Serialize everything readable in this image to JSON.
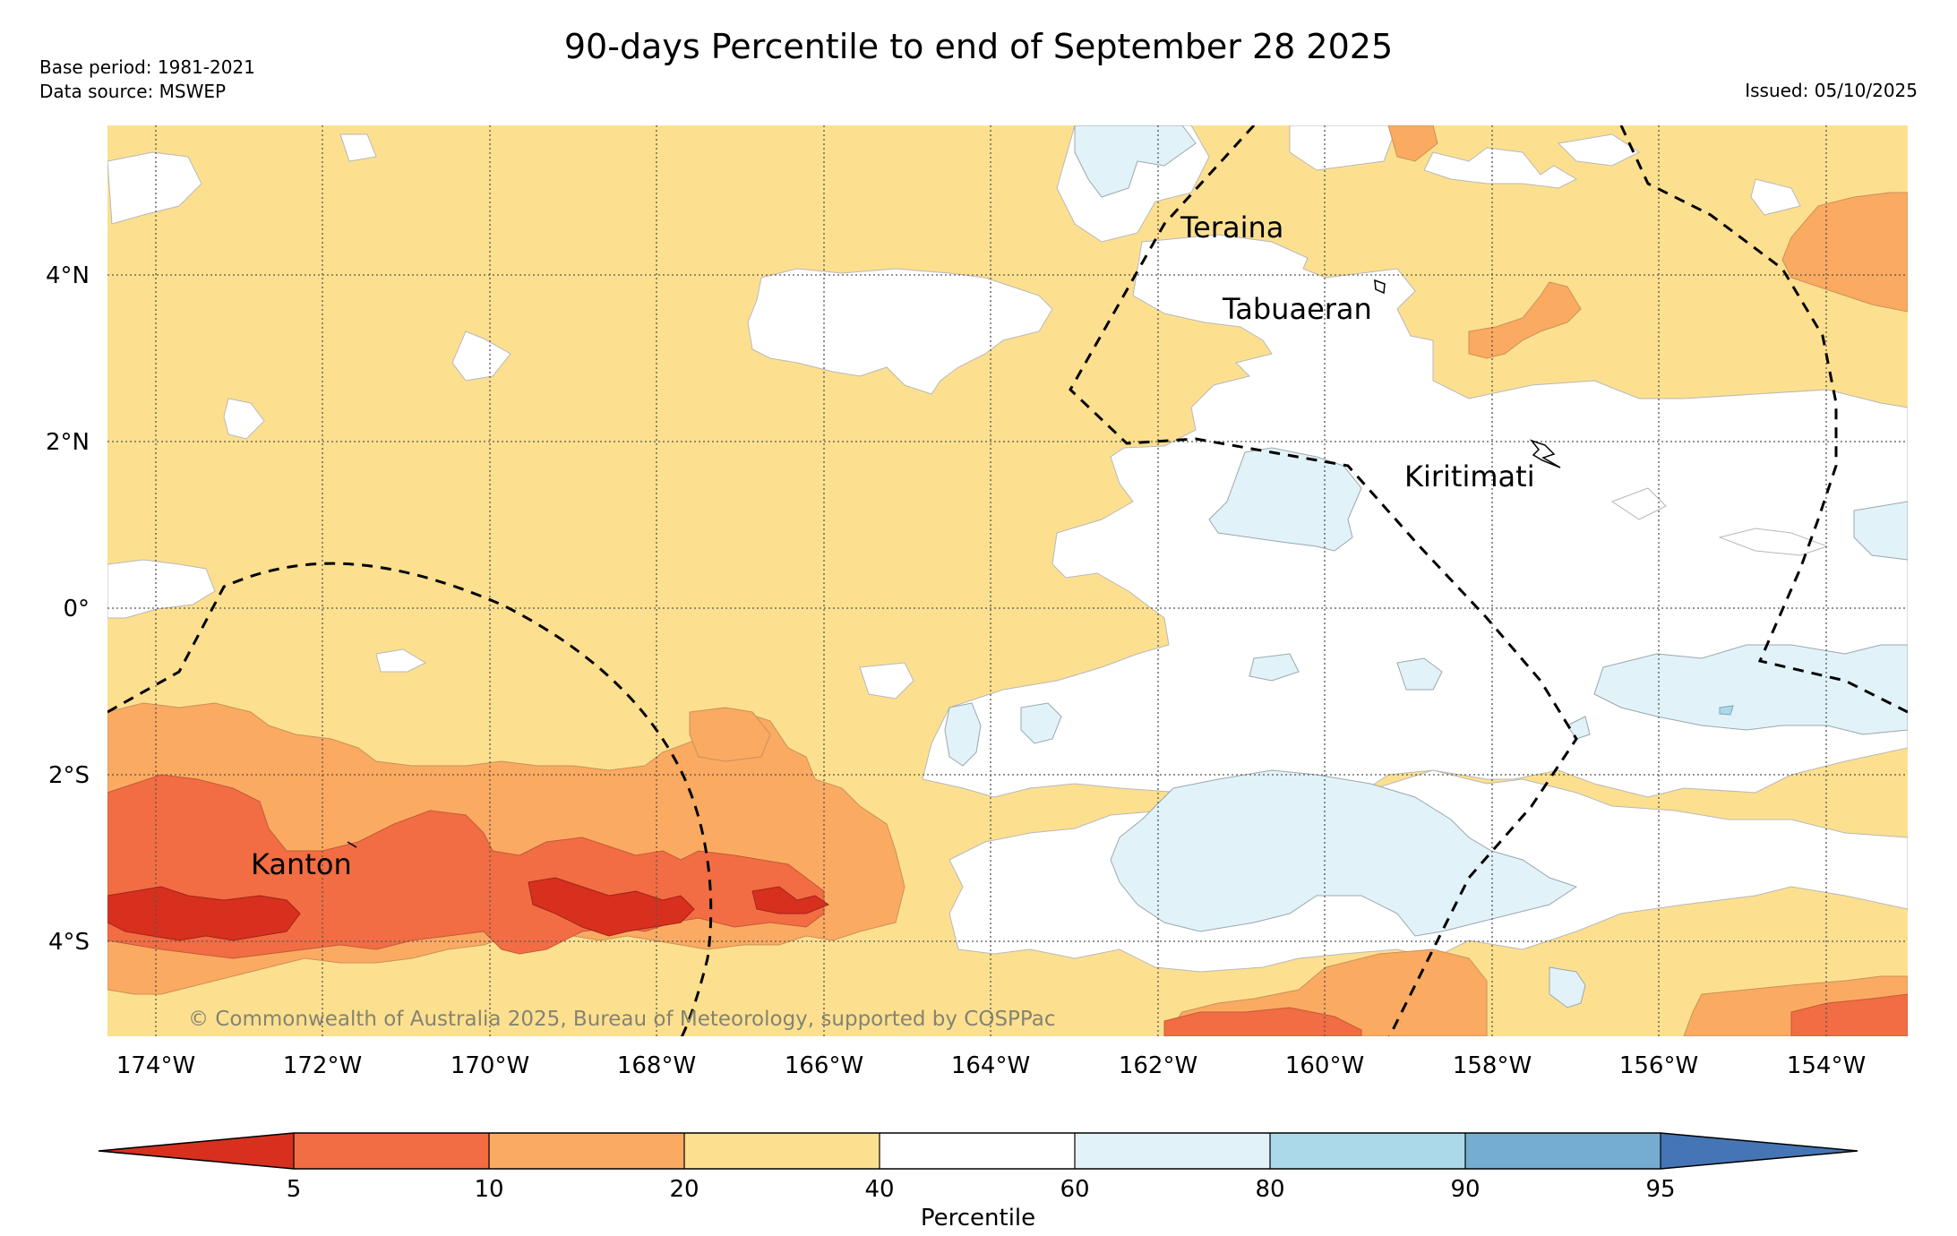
{
  "title": "90-days Percentile to end of September 28 2025",
  "base_period": "Base period: 1981-2021",
  "data_source": "Data source: MSWEP",
  "issued": "Issued: 05/10/2025",
  "copyright": "© Commonwealth of Australia 2025, Bureau of Meteorology, supported by COSPPac",
  "lat_labels": [
    "4°N",
    "2°N",
    "0°",
    "2°S",
    "4°S"
  ],
  "lon_labels": [
    "174°W",
    "172°W",
    "170°W",
    "168°W",
    "166°W",
    "164°W",
    "162°W",
    "160°W",
    "158°W",
    "156°W",
    "154°W"
  ],
  "places": {
    "teraina": "Teraina",
    "tabuaeran": "Tabuaeran",
    "kiritimati": "Kiritimati",
    "kanton": "Kanton"
  },
  "colorbar": {
    "label": "Percentile",
    "ticks": [
      "5",
      "10",
      "20",
      "40",
      "60",
      "80",
      "90",
      "95"
    ],
    "colors": {
      "lt5": "#d7301f",
      "p5_10": "#f26d43",
      "p10_20": "#fbaa62",
      "p20_40": "#fde08f",
      "p40_60": "#ffffff",
      "p60_80": "#e1f2f8",
      "p80_90": "#abd9e9",
      "p90_95": "#74add1",
      "gt95": "#4575b4"
    }
  }
}
